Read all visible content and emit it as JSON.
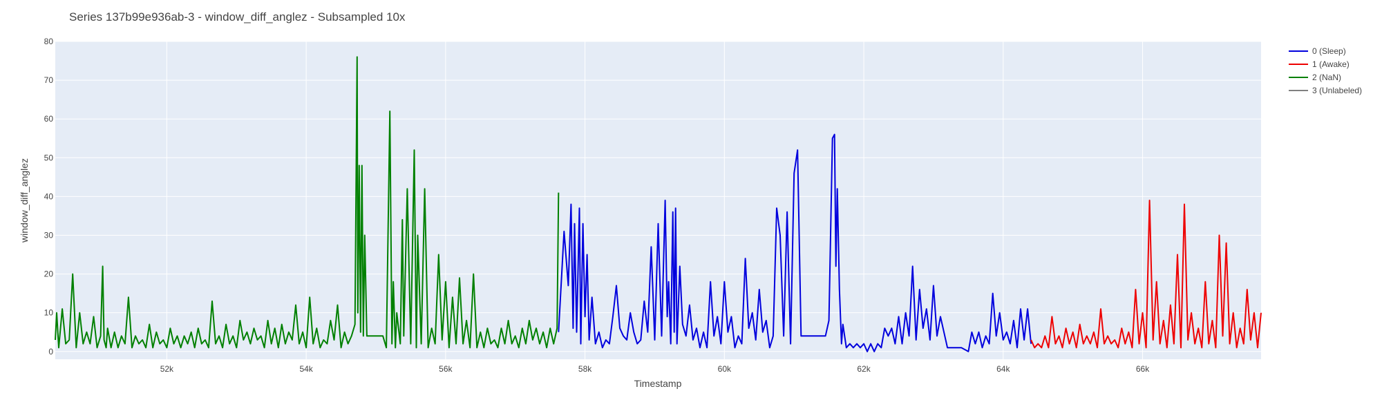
{
  "chart_data": {
    "type": "line",
    "title": "Series 137b99e936ab-3 - window_diff_anglez - Subsampled 10x",
    "xlabel": "Timestamp",
    "ylabel": "window_diff_anglez",
    "xlim": [
      50400,
      67700
    ],
    "ylim": [
      -2,
      80
    ],
    "x_ticks": [
      52000,
      54000,
      56000,
      58000,
      60000,
      62000,
      64000,
      66000
    ],
    "x_tick_labels": [
      "52k",
      "54k",
      "56k",
      "58k",
      "60k",
      "62k",
      "64k",
      "66k"
    ],
    "y_ticks": [
      0,
      10,
      20,
      30,
      40,
      50,
      60,
      70,
      80
    ],
    "y_tick_labels": [
      "0",
      "10",
      "20",
      "30",
      "40",
      "50",
      "60",
      "70",
      "80"
    ],
    "grid": true,
    "legend_position": "top-right",
    "colors": {
      "plot_bg": "#e5ecf6",
      "grid": "#ffffff",
      "text": "#444444"
    },
    "series": [
      {
        "name": "0 (Sleep)",
        "color": "#0000dd",
        "x": [
          57620,
          57700,
          57760,
          57800,
          57830,
          57850,
          57880,
          57920,
          57940,
          57970,
          58000,
          58030,
          58060,
          58100,
          58150,
          58200,
          58250,
          58300,
          58350,
          58400,
          58450,
          58500,
          58550,
          58600,
          58650,
          58700,
          58750,
          58800,
          58850,
          58900,
          58950,
          59000,
          59050,
          59100,
          59150,
          59180,
          59200,
          59230,
          59260,
          59280,
          59300,
          59320,
          59360,
          59400,
          59450,
          59500,
          59550,
          59600,
          59650,
          59700,
          59750,
          59800,
          59850,
          59900,
          59950,
          60000,
          60050,
          60100,
          60150,
          60200,
          60250,
          60300,
          60350,
          60400,
          60450,
          60500,
          60550,
          60600,
          60650,
          60700,
          60750,
          60800,
          60850,
          60900,
          60950,
          61000,
          61050,
          61100,
          61150,
          61200,
          61250,
          61300,
          61350,
          61400,
          61450,
          61500,
          61550,
          61580,
          61600,
          61620,
          61650,
          61680,
          61700,
          61750,
          61800,
          61850,
          61900,
          61950,
          62000,
          62050,
          62100,
          62150,
          62200,
          62250,
          62300,
          62350,
          62400,
          62450,
          62500,
          62550,
          62600,
          62650,
          62700,
          62750,
          62800,
          62850,
          62900,
          62950,
          63000,
          63050,
          63100,
          63200,
          63300,
          63400,
          63500,
          63550,
          63600,
          63650,
          63700,
          63750,
          63800,
          63850,
          63900,
          63950,
          64000,
          64050,
          64100,
          64150,
          64200,
          64250,
          64300,
          64350,
          64400
        ],
        "values": [
          5,
          31,
          17,
          38,
          6,
          33,
          5,
          37,
          2,
          33,
          9,
          25,
          3,
          14,
          2,
          5,
          1,
          3,
          2,
          9,
          17,
          6,
          4,
          3,
          10,
          5,
          2,
          3,
          13,
          5,
          27,
          3,
          33,
          4,
          39,
          9,
          18,
          2,
          36,
          5,
          37,
          2,
          22,
          7,
          4,
          12,
          3,
          6,
          1,
          5,
          1,
          18,
          4,
          9,
          2,
          18,
          5,
          9,
          1,
          4,
          2,
          24,
          6,
          10,
          3,
          16,
          5,
          8,
          1,
          4,
          37,
          30,
          4,
          36,
          2,
          46,
          52,
          4,
          4,
          4,
          4,
          4,
          4,
          4,
          4,
          8,
          55,
          56,
          22,
          42,
          16,
          2,
          7,
          1,
          2,
          1,
          2,
          1,
          2,
          0,
          2,
          0,
          2,
          1,
          6,
          4,
          6,
          2,
          9,
          2,
          10,
          4,
          22,
          3,
          16,
          6,
          11,
          3,
          17,
          4,
          9,
          1,
          1,
          1,
          0,
          5,
          2,
          5,
          1,
          4,
          2,
          15,
          4,
          10,
          3,
          5,
          2,
          8,
          1,
          11,
          3,
          11,
          2
        ]
      },
      {
        "name": "1 (Awake)",
        "color": "#ee0000",
        "x": [
          64400,
          64450,
          64500,
          64550,
          64600,
          64650,
          64700,
          64750,
          64800,
          64850,
          64900,
          64950,
          65000,
          65050,
          65100,
          65150,
          65200,
          65250,
          65300,
          65350,
          65400,
          65450,
          65500,
          65550,
          65600,
          65650,
          65700,
          65750,
          65800,
          65850,
          65900,
          65950,
          66000,
          66050,
          66100,
          66150,
          66200,
          66250,
          66300,
          66350,
          66400,
          66450,
          66500,
          66550,
          66600,
          66650,
          66700,
          66750,
          66800,
          66850,
          66900,
          66950,
          67000,
          67050,
          67100,
          67150,
          67200,
          67250,
          67300,
          67350,
          67400,
          67450,
          67500,
          67550,
          67600,
          67650,
          67700
        ],
        "values": [
          3,
          1,
          2,
          1,
          4,
          1,
          9,
          2,
          4,
          1,
          6,
          2,
          5,
          1,
          7,
          2,
          4,
          2,
          5,
          1,
          11,
          2,
          4,
          2,
          3,
          1,
          6,
          2,
          5,
          1,
          16,
          2,
          10,
          1,
          39,
          3,
          18,
          2,
          8,
          1,
          12,
          2,
          25,
          1,
          38,
          3,
          10,
          2,
          6,
          1,
          18,
          2,
          8,
          1,
          30,
          4,
          28,
          2,
          10,
          1,
          6,
          2,
          16,
          3,
          10,
          1,
          10
        ]
      },
      {
        "name": "2 (NaN)",
        "color": "#008000",
        "x": [
          50400,
          50420,
          50450,
          50500,
          50550,
          50600,
          50650,
          50700,
          50750,
          50800,
          50850,
          50900,
          50950,
          51000,
          51050,
          51080,
          51100,
          51130,
          51150,
          51200,
          51250,
          51300,
          51350,
          51400,
          51450,
          51500,
          51550,
          51600,
          51650,
          51700,
          51750,
          51800,
          51850,
          51900,
          51950,
          52000,
          52050,
          52100,
          52150,
          52200,
          52250,
          52300,
          52350,
          52400,
          52450,
          52500,
          52550,
          52600,
          52650,
          52700,
          52750,
          52800,
          52850,
          52900,
          52950,
          53000,
          53050,
          53100,
          53150,
          53200,
          53250,
          53300,
          53350,
          53400,
          53450,
          53500,
          53550,
          53600,
          53650,
          53700,
          53750,
          53800,
          53850,
          53900,
          53950,
          54000,
          54050,
          54100,
          54150,
          54200,
          54250,
          54300,
          54350,
          54400,
          54450,
          54500,
          54550,
          54600,
          54650,
          54700,
          54730,
          54740,
          54760,
          54780,
          54800,
          54820,
          54840,
          54870,
          54900,
          54950,
          55000,
          55050,
          55100,
          55150,
          55200,
          55230,
          55250,
          55280,
          55300,
          55350,
          55380,
          55400,
          55450,
          55500,
          55550,
          55580,
          55600,
          55650,
          55700,
          55750,
          55800,
          55850,
          55900,
          55950,
          56000,
          56050,
          56100,
          56150,
          56200,
          56250,
          56300,
          56350,
          56400,
          56450,
          56500,
          56550,
          56600,
          56650,
          56700,
          56750,
          56800,
          56850,
          56900,
          56950,
          57000,
          57050,
          57100,
          57150,
          57200,
          57250,
          57300,
          57350,
          57400,
          57450,
          57500,
          57550,
          57600,
          57620
        ],
        "values": [
          3,
          10,
          1,
          11,
          2,
          3,
          20,
          1,
          10,
          2,
          5,
          2,
          9,
          1,
          4,
          22,
          3,
          1,
          6,
          1,
          5,
          1,
          4,
          2,
          14,
          1,
          4,
          2,
          3,
          1,
          7,
          1,
          5,
          2,
          3,
          1,
          6,
          2,
          4,
          1,
          4,
          2,
          5,
          1,
          6,
          2,
          3,
          1,
          13,
          2,
          4,
          1,
          7,
          2,
          4,
          1,
          8,
          3,
          5,
          2,
          6,
          3,
          4,
          1,
          8,
          2,
          6,
          1,
          7,
          2,
          5,
          3,
          12,
          2,
          5,
          1,
          14,
          2,
          6,
          1,
          3,
          2,
          8,
          3,
          12,
          1,
          5,
          2,
          4,
          7,
          76,
          10,
          48,
          5,
          48,
          4,
          30,
          4,
          4,
          4,
          4,
          4,
          4,
          1,
          62,
          2,
          18,
          1,
          10,
          2,
          34,
          4,
          42,
          2,
          52,
          1,
          30,
          2,
          42,
          1,
          6,
          2,
          25,
          3,
          18,
          1,
          14,
          2,
          19,
          2,
          8,
          1,
          20,
          1,
          5,
          1,
          6,
          2,
          3,
          1,
          6,
          2,
          8,
          2,
          4,
          1,
          6,
          2,
          8,
          3,
          6,
          2,
          5,
          1,
          6,
          2,
          6,
          41
        ]
      },
      {
        "name": "3 (Unlabeled)",
        "color": "#808080",
        "x": [],
        "values": []
      }
    ]
  }
}
